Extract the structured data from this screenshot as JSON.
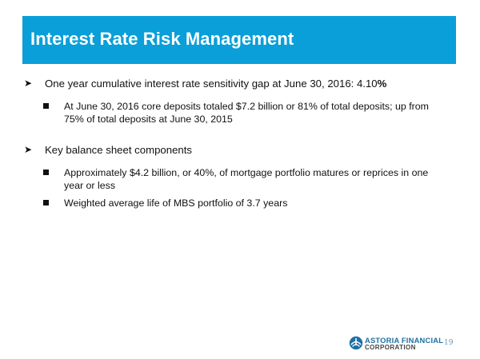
{
  "slide": {
    "title": "Interest Rate Risk Management",
    "bullets": [
      {
        "text": "One year cumulative interest rate sensitivity gap at June 30, 2016: 4.10",
        "suffix": "%",
        "sub": [
          "At June 30, 2016 core deposits totaled $7.2 billion or 81% of total deposits; up from 75% of total deposits at June 30, 2015"
        ]
      },
      {
        "text": "Key balance sheet components",
        "sub": [
          "Approximately $4.2 billion, or 40%, of mortgage portfolio matures or reprices in one year or less",
          "Weighted average life of MBS portfolio of 3.7 years"
        ]
      }
    ],
    "bullet_icon": "arrowhead-icon",
    "sub_bullet_icon": "square-bullet-icon",
    "title_bar_color": "#0a9fd9"
  },
  "footer": {
    "logo_line1": "ASTORIA FINANCIAL",
    "logo_line2": "CORPORATION",
    "page_number": "19"
  }
}
